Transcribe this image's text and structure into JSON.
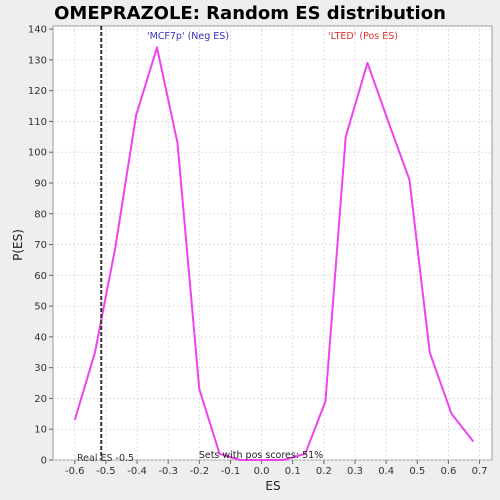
{
  "chart_data": {
    "type": "line",
    "title": "OMEPRAZOLE: Random ES distribution",
    "xlabel": "ES",
    "ylabel": "P(ES)",
    "xlim": [
      -0.67,
      0.74
    ],
    "ylim": [
      0,
      141
    ],
    "x_ticks": [
      -0.6,
      -0.5,
      -0.4,
      -0.3,
      -0.2,
      -0.1,
      0.0,
      0.1,
      0.2,
      0.3,
      0.4,
      0.5,
      0.6,
      0.7
    ],
    "x_tick_labels": [
      "-0.6",
      "-0.5",
      "-0.4",
      "-0.3",
      "-0.2",
      "-0.1",
      "0.0",
      "0.1",
      "0.2",
      "0.3",
      "0.4",
      "0.5",
      "0.6",
      "0.7"
    ],
    "y_ticks": [
      0,
      10,
      20,
      30,
      40,
      50,
      60,
      70,
      80,
      90,
      100,
      110,
      120,
      130,
      140
    ],
    "grid": true,
    "line_color": "#ee44ee",
    "series": [
      {
        "x": [
          -0.6,
          -0.535,
          -0.47,
          -0.403,
          -0.336,
          -0.27,
          -0.2,
          -0.135,
          -0.07,
          0.0,
          0.07,
          0.14,
          0.205,
          0.27,
          0.34,
          0.41,
          0.475,
          0.54,
          0.61,
          0.68
        ],
        "y": [
          13,
          35,
          69,
          112,
          134,
          103,
          23,
          2,
          0,
          0,
          0,
          2,
          19,
          105,
          129,
          109,
          91,
          35,
          15,
          6
        ]
      }
    ],
    "real_es": {
      "value": -0.515,
      "label": "Real ES -0.5",
      "color": "#333333"
    },
    "annotations": {
      "neg": {
        "text": "'MCF7p' (Neg ES)",
        "color": "#3333bb"
      },
      "pos": {
        "text": "'LTED' (Pos ES)",
        "color": "#dd3333"
      },
      "pos_scores": {
        "text": "Sets with pos scores: 51%",
        "color": "#222222"
      }
    }
  }
}
